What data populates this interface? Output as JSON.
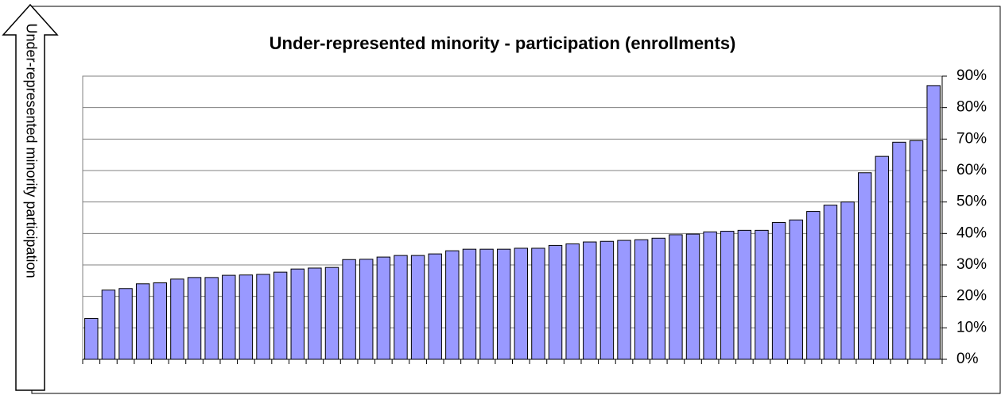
{
  "chart_data": {
    "type": "bar",
    "title": "Under-represented minority - participation (enrollments)",
    "ylabel": "Under-represented minority participation",
    "values": [
      13,
      22,
      22.5,
      24,
      24.3,
      25.5,
      26,
      26,
      26.7,
      26.8,
      27,
      27.7,
      28.7,
      29,
      29.2,
      31.7,
      31.8,
      32.5,
      33,
      33,
      33.5,
      34.5,
      35,
      35,
      35,
      35.3,
      35.3,
      36.2,
      36.7,
      37.3,
      37.5,
      37.8,
      38,
      38.5,
      39.6,
      39.8,
      40.5,
      40.7,
      41,
      41,
      43.5,
      44.3,
      47,
      49,
      50,
      59.3,
      64.5,
      69,
      69.5,
      87
    ],
    "color": "#9999ff",
    "ylim": [
      0,
      90
    ],
    "yticks": [
      {
        "value": 0,
        "label": "0%"
      },
      {
        "value": 10,
        "label": "10%"
      },
      {
        "value": 20,
        "label": "20%"
      },
      {
        "value": 30,
        "label": "30%"
      },
      {
        "value": 40,
        "label": "40%"
      },
      {
        "value": 50,
        "label": "50%"
      },
      {
        "value": 60,
        "label": "60%"
      },
      {
        "value": 70,
        "label": "70%"
      },
      {
        "value": 80,
        "label": "80%"
      },
      {
        "value": 90,
        "label": "90%"
      }
    ],
    "grid": true
  }
}
